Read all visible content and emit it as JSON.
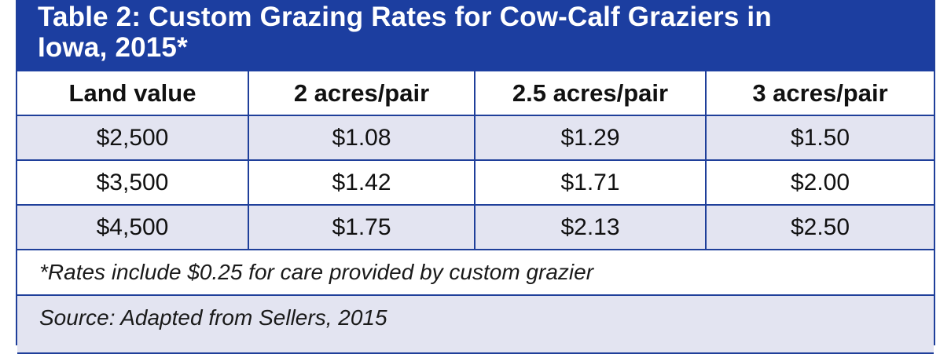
{
  "title_line1": "Table 2: Custom Grazing Rates for Cow-Calf Graziers in",
  "title_line2": "Iowa, 2015*",
  "headers": [
    "Land value",
    "2 acres/pair",
    "2.5 acres/pair",
    "3 acres/pair"
  ],
  "rows": [
    [
      "$2,500",
      "$1.08",
      "$1.29",
      "$1.50"
    ],
    [
      "$3,500",
      "$1.42",
      "$1.71",
      "$2.00"
    ],
    [
      "$4,500",
      "$1.75",
      "$2.13",
      "$2.50"
    ]
  ],
  "footnote": "*Rates include $0.25 for care provided by custom grazier",
  "source": "Source: Adapted from Sellers, 2015",
  "colors": {
    "title_bg": "#1c3ea0",
    "border": "#1f3f9a",
    "shaded_row": "#e3e4f1"
  }
}
